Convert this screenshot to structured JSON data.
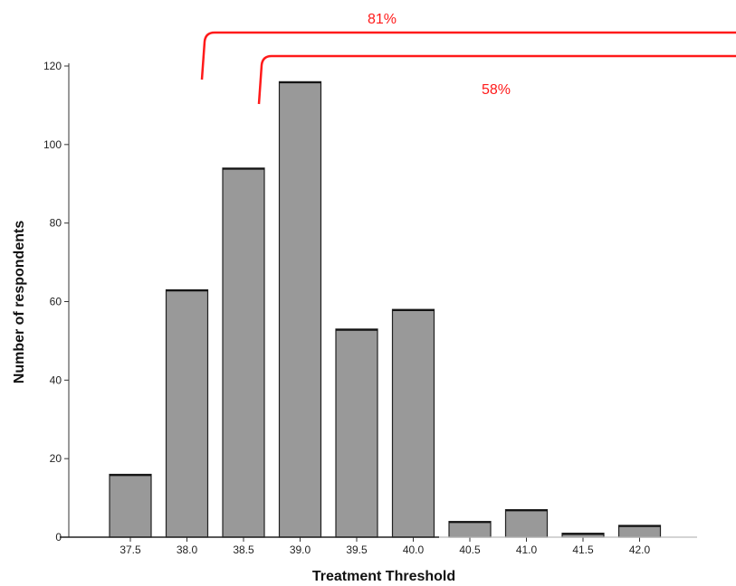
{
  "chart_data": {
    "type": "bar",
    "xlabel": "Treatment Threshold",
    "ylabel": "Number of respondents",
    "categories": [
      "37.5",
      "38.0",
      "38.5",
      "39.0",
      "39.5",
      "40.0",
      "40.5",
      "41.0",
      "41.5",
      "42.0"
    ],
    "values": [
      16,
      63,
      94,
      116,
      53,
      58,
      4,
      7,
      1,
      3
    ],
    "ylim": [
      0,
      120
    ],
    "yticks": [
      "0",
      "20",
      "40",
      "60",
      "80",
      "100",
      "120"
    ],
    "grid": false,
    "bar_color": "#999999",
    "annotations": [
      {
        "label": "81%",
        "from_category": "38.0",
        "color": "#ff1a1a"
      },
      {
        "label": "58%",
        "from_category": "38.5",
        "color": "#ff1a1a"
      }
    ]
  }
}
